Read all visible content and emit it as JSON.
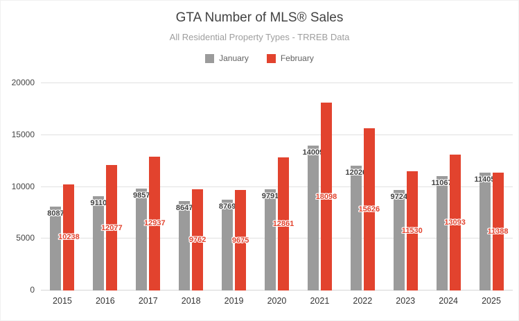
{
  "title": "GTA Number of MLS® Sales",
  "subtitle": "All Residential Property Types - TRREB Data",
  "colors": {
    "january": "#9b9b9b",
    "february": "#e2432e",
    "january_label": "#404040",
    "february_label": "#e2432e",
    "gridline": "#e0e0e0",
    "title_text": "#424242",
    "subtitle_text": "#9e9e9e"
  },
  "chart_data": {
    "type": "bar",
    "title": "GTA Number of MLS® Sales",
    "subtitle": "All Residential Property Types - TRREB Data",
    "categories": [
      "2015",
      "2016",
      "2017",
      "2018",
      "2019",
      "2020",
      "2021",
      "2022",
      "2023",
      "2024",
      "2025"
    ],
    "series": [
      {
        "name": "January",
        "color": "#9b9b9b",
        "label_color": "#404040",
        "label_position": "inside-end",
        "values": [
          8087,
          9110,
          9857,
          8647,
          8769,
          9791,
          14009,
          12026,
          9724,
          11067,
          11405
        ]
      },
      {
        "name": "February",
        "color": "#e2432e",
        "label_color": "#e2432e",
        "label_position": "center",
        "values": [
          10238,
          12077,
          12937,
          9762,
          9675,
          12861,
          18098,
          15626,
          11530,
          13093,
          11388
        ]
      }
    ],
    "xlabel": "",
    "ylabel": "",
    "ylim": [
      0,
      20000
    ],
    "yticks": [
      0,
      5000,
      10000,
      15000,
      20000
    ],
    "grid": true,
    "legend_position": "top"
  }
}
